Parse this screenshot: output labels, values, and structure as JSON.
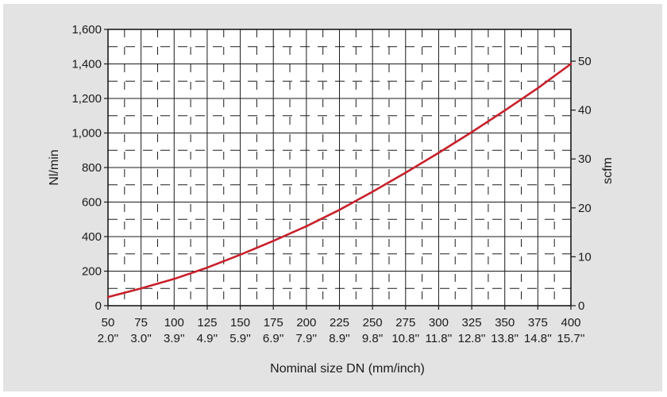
{
  "chart_data": {
    "type": "line",
    "title": "",
    "xlabel": "Nominal size DN  (mm/inch)",
    "ylabel": "Nl/min",
    "ylabel_right": "scfm",
    "xlim": [
      50,
      400
    ],
    "ylim": [
      0,
      1600
    ],
    "ylim_right": [
      0,
      56.5
    ],
    "x_ticks": [
      50,
      75,
      100,
      125,
      150,
      175,
      200,
      225,
      250,
      275,
      300,
      325,
      350,
      375,
      400
    ],
    "x_ticks_inch": [
      "2.0''",
      "3.0''",
      "3.9''",
      "4.9''",
      "5.9''",
      "6.9''",
      "7.9''",
      "8.9''",
      "9.8''",
      "10.8''",
      "11.8''",
      "12.8''",
      "13.8''",
      "14.8''",
      "15.7''"
    ],
    "y_ticks": [
      "0",
      "200",
      "400",
      "600",
      "800",
      "1,000",
      "1,200",
      "1,400",
      "1,600"
    ],
    "y_ticks_right": [
      "0",
      "10",
      "20",
      "30",
      "40",
      "50"
    ],
    "grid": true,
    "series": [
      {
        "name": "",
        "color": "#c8202b",
        "x": [
          50,
          75,
          100,
          125,
          150,
          175,
          200,
          225,
          250,
          275,
          300,
          325,
          350,
          375,
          400
        ],
        "y": [
          50,
          100,
          155,
          220,
          295,
          375,
          460,
          555,
          660,
          770,
          885,
          1005,
          1130,
          1260,
          1400
        ]
      }
    ]
  }
}
